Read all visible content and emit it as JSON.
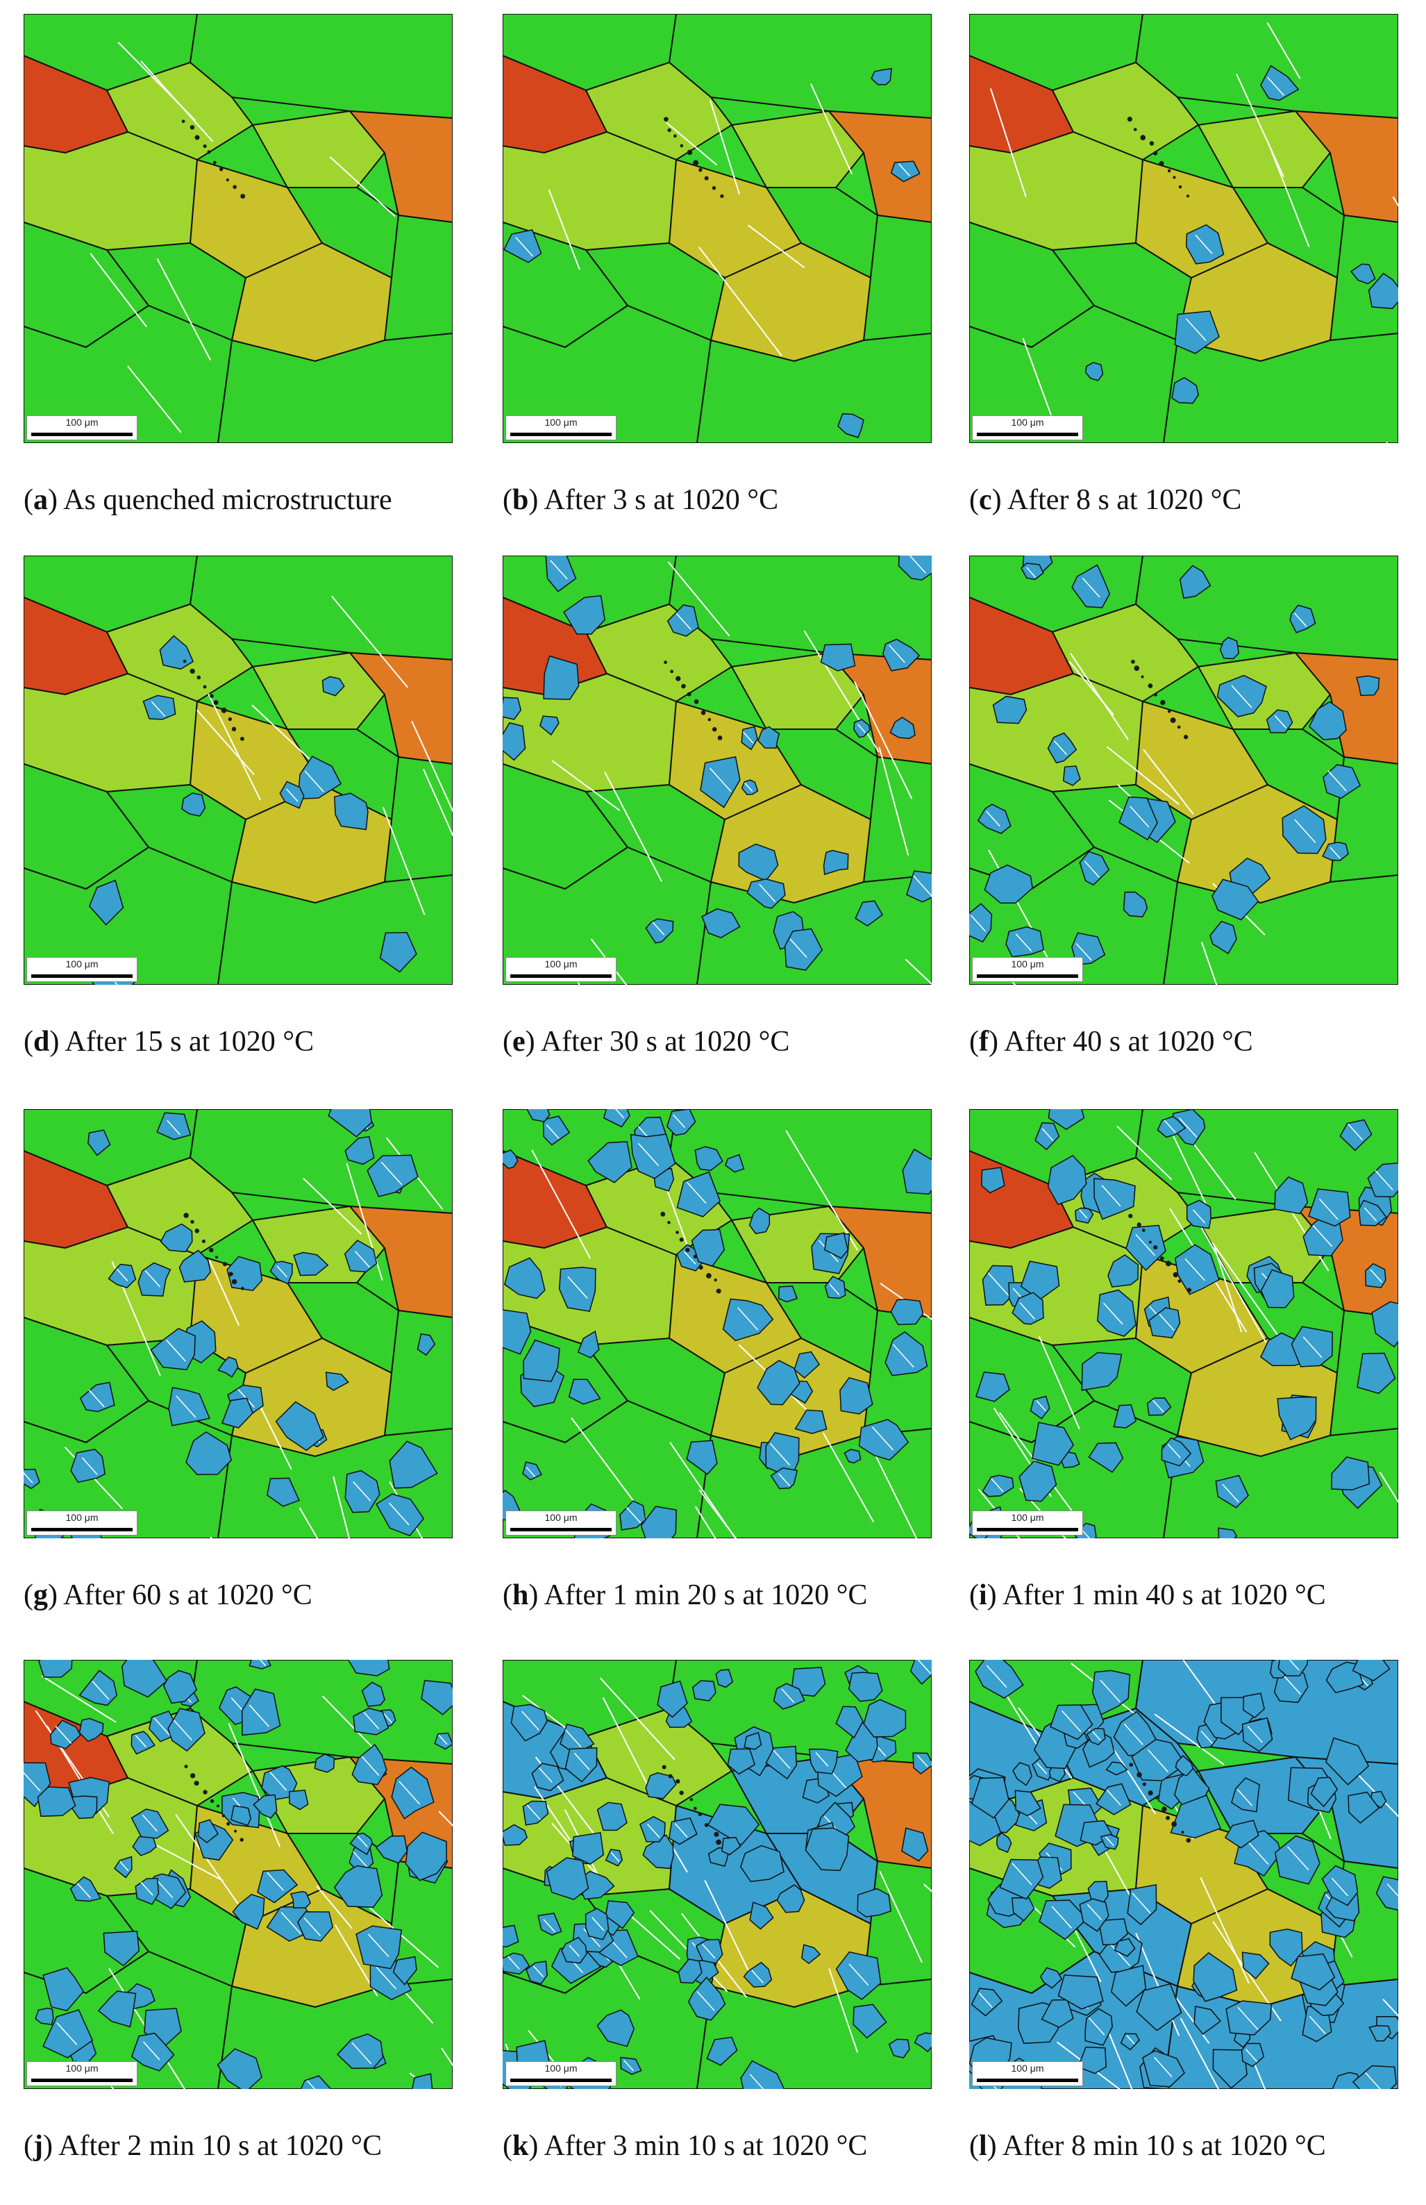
{
  "figure": {
    "scale_bar_label": "100 μm",
    "panels": [
      {
        "letter": "a",
        "caption": "As quenched microstructure",
        "blue_fraction": 0.0
      },
      {
        "letter": "b",
        "caption": "After 3 s at 1020 °C",
        "blue_fraction": 0.03
      },
      {
        "letter": "c",
        "caption": "After 8 s at 1020 °C",
        "blue_fraction": 0.05
      },
      {
        "letter": "d",
        "caption": "After 15 s at 1020 °C",
        "blue_fraction": 0.07
      },
      {
        "letter": "e",
        "caption": "After 30 s at 1020 °C",
        "blue_fraction": 0.18
      },
      {
        "letter": "f",
        "caption": "After 40 s at 1020 °C",
        "blue_fraction": 0.2
      },
      {
        "letter": "g",
        "caption": "After 60 s at 1020 °C",
        "blue_fraction": 0.25
      },
      {
        "letter": "h",
        "caption": "After 1 min 20 s at 1020 °C",
        "blue_fraction": 0.33
      },
      {
        "letter": "i",
        "caption": "After 1 min 40 s at 1020 °C",
        "blue_fraction": 0.4
      },
      {
        "letter": "j",
        "caption": "After 2 min 10 s at 1020 °C",
        "blue_fraction": 0.5
      },
      {
        "letter": "k",
        "caption": "After 3 min 10 s at 1020 °C",
        "blue_fraction": 0.6
      },
      {
        "letter": "l",
        "caption": "After 8 min 10 s at 1020 °C",
        "blue_fraction": 0.8
      }
    ],
    "colors": {
      "green": "#34d02b",
      "lime": "#9ed62f",
      "yellow": "#c9c22a",
      "orange": "#e07a22",
      "red": "#d6461d",
      "blue": "#3aa0cf",
      "boundary": "#111111",
      "twin": "#ffffff"
    }
  }
}
